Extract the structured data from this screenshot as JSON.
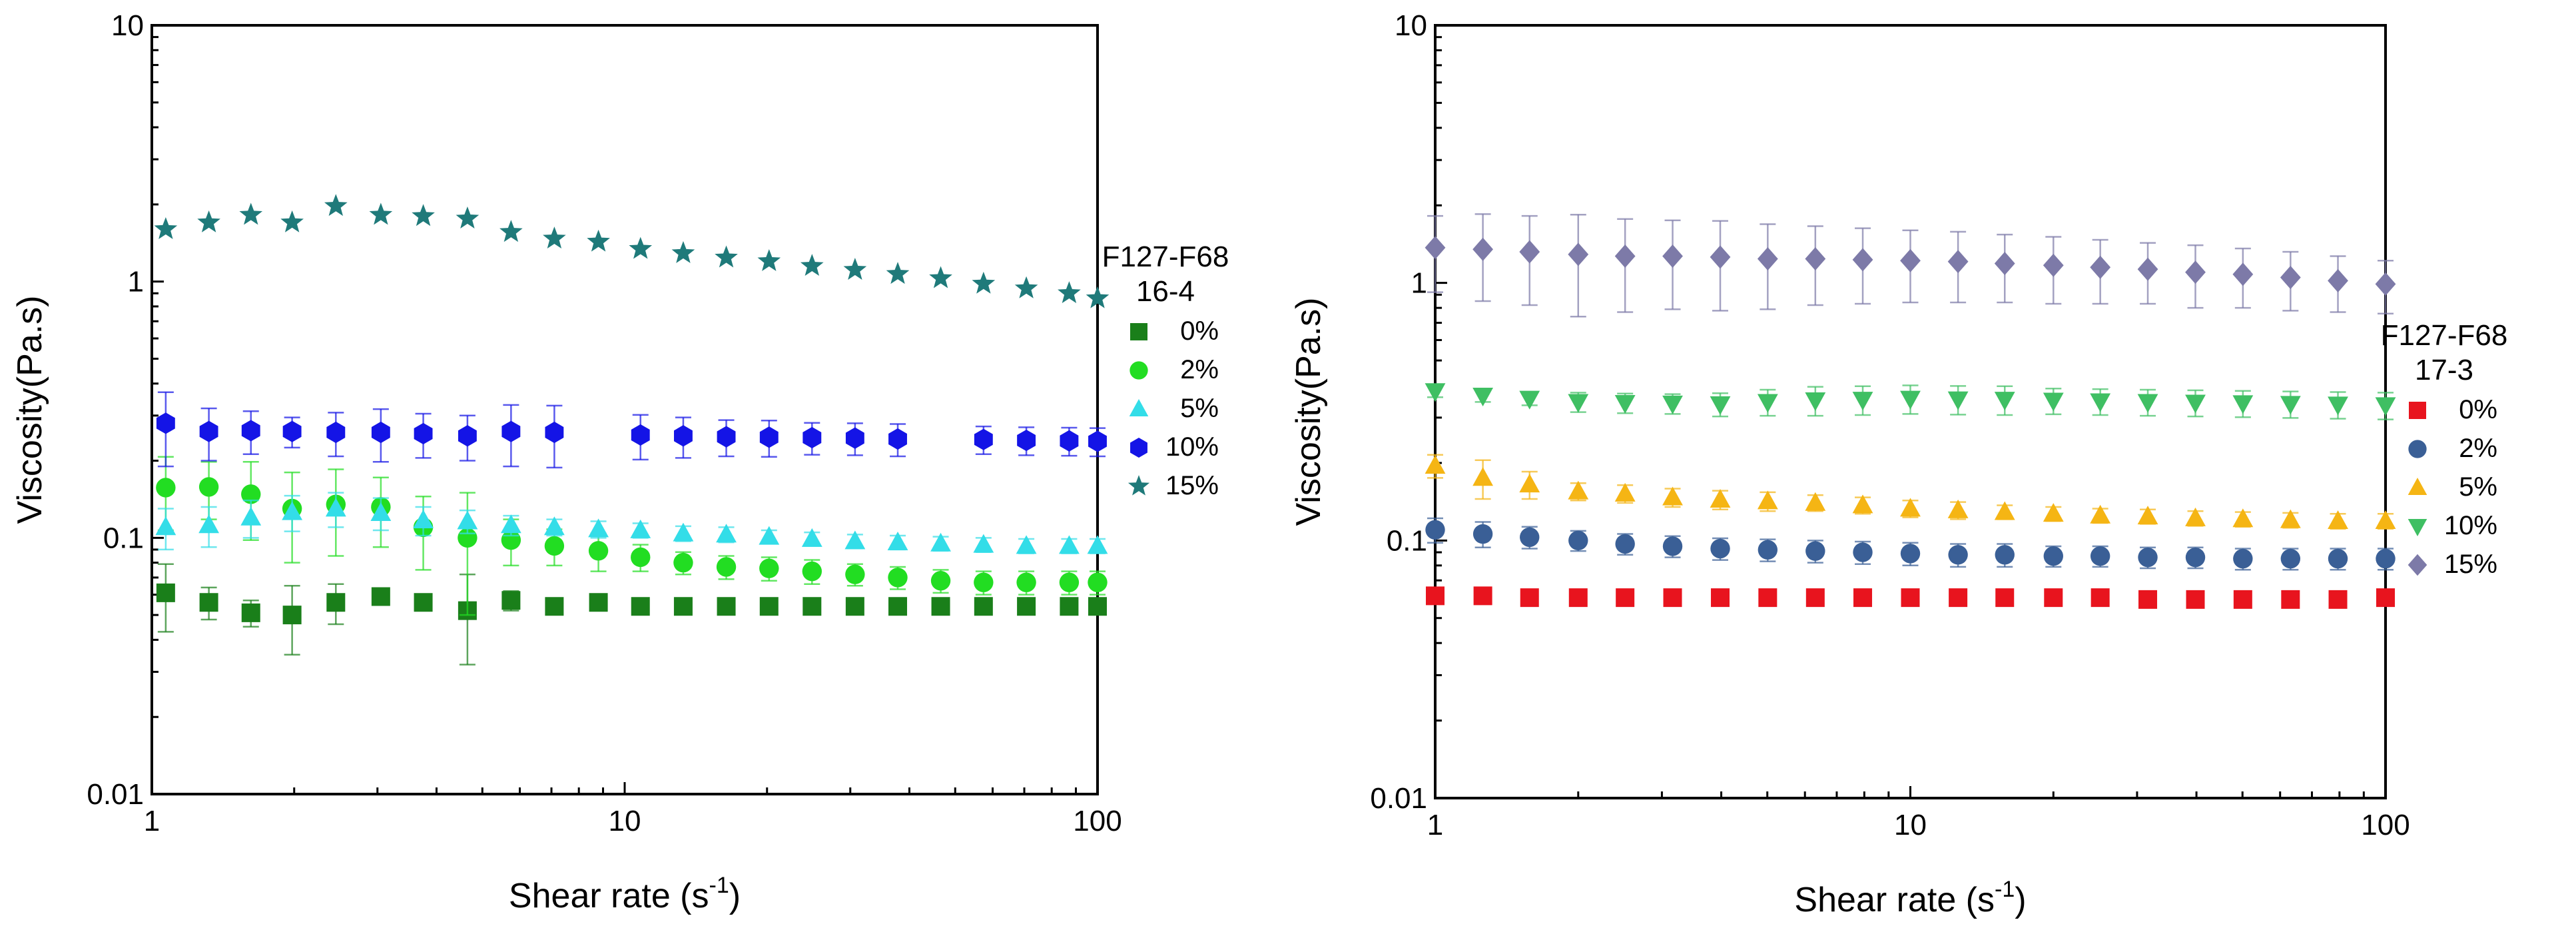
{
  "chart_data": [
    {
      "type": "scatter",
      "xscale": "log",
      "yscale": "log",
      "xlim": [
        1,
        100
      ],
      "ylim": [
        0.01,
        10
      ],
      "xlabel": "Shear rate (s",
      "xlabel_sup": "-1",
      "xlabel_end": ")",
      "ylabel": "Viscosity(Pa.s)",
      "xticks": [
        "1",
        "10",
        "100"
      ],
      "yticks": [
        "0.01",
        "0.1",
        "1",
        "10"
      ],
      "legend_title": [
        "F127-F68",
        "16-4"
      ],
      "legend_position": "right",
      "x": [
        1.07,
        1.32,
        1.62,
        1.98,
        2.45,
        3.05,
        3.75,
        4.65,
        5.75,
        7.1,
        8.8,
        10.8,
        13.3,
        16.4,
        20.2,
        24.9,
        30.7,
        37.8,
        46.6,
        57.4,
        70.7,
        87.1,
        100
      ],
      "series": [
        {
          "name": "0%",
          "marker": "square",
          "color": "#1a7f1a",
          "values": [
            0.061,
            0.056,
            0.051,
            0.05,
            0.056,
            0.059,
            0.056,
            0.052,
            0.057,
            0.054,
            0.056,
            0.054,
            0.054,
            0.054,
            0.054,
            0.054,
            0.054,
            0.054,
            0.054,
            0.054,
            0.054,
            0.054,
            0.054
          ],
          "errors": [
            0.018,
            0.008,
            0.006,
            0.015,
            0.01,
            0.004,
            0.004,
            0.02,
            0.005,
            0.003,
            0.003,
            0.003,
            0.003,
            0.003,
            0.003,
            0.003,
            0.003,
            0.003,
            0.003,
            0.003,
            0.003,
            0.003,
            0.003
          ]
        },
        {
          "name": "2%",
          "marker": "circle",
          "color": "#22dd22",
          "values": [
            0.157,
            0.158,
            0.148,
            0.13,
            0.135,
            0.132,
            0.11,
            0.1,
            0.098,
            0.093,
            0.089,
            0.084,
            0.08,
            0.077,
            0.076,
            0.074,
            0.072,
            0.07,
            0.068,
            0.067,
            0.067,
            0.067,
            0.067
          ],
          "errors": [
            0.05,
            0.04,
            0.05,
            0.05,
            0.05,
            0.04,
            0.035,
            0.05,
            0.02,
            0.015,
            0.015,
            0.01,
            0.008,
            0.008,
            0.008,
            0.008,
            0.007,
            0.007,
            0.007,
            0.007,
            0.007,
            0.007,
            0.007
          ]
        },
        {
          "name": "5%",
          "marker": "triangle-up",
          "color": "#33dde8",
          "values": [
            0.11,
            0.112,
            0.12,
            0.126,
            0.13,
            0.125,
            0.117,
            0.116,
            0.112,
            0.11,
            0.108,
            0.107,
            0.104,
            0.103,
            0.101,
            0.099,
            0.097,
            0.096,
            0.095,
            0.094,
            0.093,
            0.093,
            0.093
          ],
          "errors": [
            0.02,
            0.02,
            0.02,
            0.02,
            0.02,
            0.018,
            0.015,
            0.012,
            0.01,
            0.008,
            0.008,
            0.007,
            0.007,
            0.007,
            0.006,
            0.006,
            0.006,
            0.006,
            0.006,
            0.006,
            0.006,
            0.006,
            0.006
          ]
        },
        {
          "name": "10%",
          "marker": "hexagon",
          "color": "#1414e6",
          "values": [
            0.28,
            0.26,
            0.262,
            0.26,
            0.258,
            0.258,
            0.255,
            0.25,
            0.26,
            0.258,
            null,
            0.252,
            0.25,
            0.248,
            0.247,
            0.246,
            0.245,
            0.243,
            null,
            0.242,
            0.24,
            0.239,
            0.238
          ],
          "errors": [
            0.09,
            0.06,
            0.05,
            0.035,
            0.05,
            0.06,
            0.05,
            0.05,
            0.07,
            0.07,
            null,
            0.05,
            0.045,
            0.04,
            0.04,
            0.035,
            0.035,
            0.035,
            null,
            0.03,
            0.03,
            0.03,
            0.03
          ]
        },
        {
          "name": "15%",
          "marker": "star",
          "color": "#1f7a7a",
          "values": [
            1.6,
            1.7,
            1.82,
            1.7,
            1.97,
            1.82,
            1.8,
            1.76,
            1.56,
            1.47,
            1.43,
            1.34,
            1.29,
            1.24,
            1.2,
            1.15,
            1.11,
            1.07,
            1.03,
            0.98,
            0.94,
            0.9,
            0.86
          ],
          "errors": null
        }
      ]
    },
    {
      "type": "scatter",
      "xscale": "log",
      "yscale": "log",
      "xlim": [
        1,
        100
      ],
      "ylim": [
        0.01,
        10
      ],
      "xlabel": "Shear rate (s",
      "xlabel_sup": "-1",
      "xlabel_end": ")",
      "ylabel": "Viscosity(Pa.s)",
      "xticks": [
        "1",
        "10",
        "100"
      ],
      "yticks": [
        "0.01",
        "0.1",
        "1",
        "10"
      ],
      "legend_title": [
        "F127-F68",
        "17-3"
      ],
      "legend_position": "right",
      "x": [
        1.0,
        1.26,
        1.58,
        2.0,
        2.51,
        3.16,
        3.98,
        5.01,
        6.31,
        7.94,
        10.0,
        12.6,
        15.8,
        20.0,
        25.1,
        31.6,
        39.8,
        50.1,
        63.1,
        79.4,
        100
      ],
      "series": [
        {
          "name": "0%",
          "marker": "square",
          "color": "#e8141e",
          "values": [
            0.061,
            0.061,
            0.06,
            0.06,
            0.06,
            0.06,
            0.06,
            0.06,
            0.06,
            0.06,
            0.06,
            0.06,
            0.06,
            0.06,
            0.06,
            0.059,
            0.059,
            0.059,
            0.059,
            0.059,
            0.06
          ],
          "errors": null
        },
        {
          "name": "2%",
          "marker": "circle",
          "color": "#3a5f96",
          "values": [
            0.11,
            0.106,
            0.103,
            0.1,
            0.097,
            0.095,
            0.093,
            0.092,
            0.091,
            0.09,
            0.089,
            0.088,
            0.088,
            0.087,
            0.087,
            0.086,
            0.086,
            0.085,
            0.085,
            0.085,
            0.085
          ],
          "errors": [
            0.012,
            0.012,
            0.01,
            0.009,
            0.009,
            0.009,
            0.009,
            0.009,
            0.009,
            0.009,
            0.009,
            0.009,
            0.009,
            0.008,
            0.008,
            0.008,
            0.008,
            0.008,
            0.008,
            0.008,
            0.008
          ]
        },
        {
          "name": "5%",
          "marker": "triangle-up",
          "color": "#f5b514",
          "values": [
            0.195,
            0.175,
            0.165,
            0.155,
            0.152,
            0.147,
            0.144,
            0.142,
            0.14,
            0.137,
            0.133,
            0.131,
            0.129,
            0.127,
            0.125,
            0.124,
            0.122,
            0.121,
            0.12,
            0.119,
            0.119
          ],
          "errors": [
            0.02,
            0.03,
            0.02,
            0.012,
            0.012,
            0.012,
            0.012,
            0.012,
            0.01,
            0.01,
            0.01,
            0.01,
            0.008,
            0.008,
            0.008,
            0.008,
            0.008,
            0.008,
            0.008,
            0.008,
            0.008
          ]
        },
        {
          "name": "10%",
          "marker": "triangle-down",
          "color": "#3fbf63",
          "values": [
            0.38,
            0.365,
            0.355,
            0.345,
            0.342,
            0.34,
            0.338,
            0.345,
            0.35,
            0.352,
            0.355,
            0.353,
            0.352,
            0.349,
            0.347,
            0.345,
            0.343,
            0.341,
            0.339,
            0.337,
            0.335
          ],
          "errors": [
            0.02,
            0.02,
            0.02,
            0.03,
            0.03,
            0.03,
            0.035,
            0.04,
            0.045,
            0.045,
            0.045,
            0.045,
            0.045,
            0.04,
            0.04,
            0.04,
            0.04,
            0.04,
            0.04,
            0.04,
            0.04
          ]
        },
        {
          "name": "15%",
          "marker": "diamond",
          "color": "#7d7aa8",
          "values": [
            1.37,
            1.35,
            1.32,
            1.29,
            1.27,
            1.27,
            1.26,
            1.24,
            1.24,
            1.23,
            1.22,
            1.21,
            1.19,
            1.17,
            1.15,
            1.13,
            1.1,
            1.08,
            1.05,
            1.02,
            0.99
          ],
          "errors": [
            0.45,
            0.5,
            0.5,
            0.55,
            0.5,
            0.48,
            0.48,
            0.45,
            0.42,
            0.4,
            0.38,
            0.37,
            0.35,
            0.34,
            0.32,
            0.3,
            0.3,
            0.28,
            0.27,
            0.25,
            0.23
          ]
        }
      ]
    }
  ]
}
